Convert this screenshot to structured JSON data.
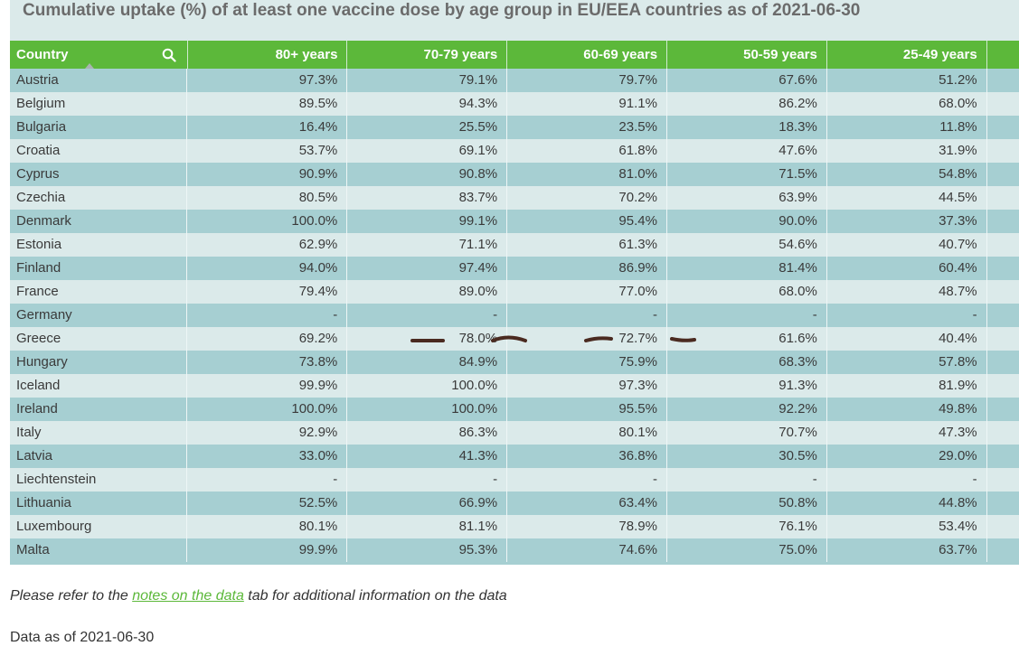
{
  "title": "Cumulative uptake (%) of at least one vaccine dose by age group in EU/EEA countries as of 2021-06-30",
  "table": {
    "headers": {
      "country": "Country",
      "age80": "80+ years",
      "age70": "70-79 years",
      "age60": "60-69 years",
      "age50": "50-59 years",
      "age25": "25-49 years"
    },
    "search_icon": "search-icon",
    "sorted_column": "Country",
    "rows": [
      {
        "country": "Austria",
        "age80": "97.3%",
        "age70": "79.1%",
        "age60": "79.7%",
        "age50": "67.6%",
        "age25": "51.2%"
      },
      {
        "country": "Belgium",
        "age80": "89.5%",
        "age70": "94.3%",
        "age60": "91.1%",
        "age50": "86.2%",
        "age25": "68.0%"
      },
      {
        "country": "Bulgaria",
        "age80": "16.4%",
        "age70": "25.5%",
        "age60": "23.5%",
        "age50": "18.3%",
        "age25": "11.8%"
      },
      {
        "country": "Croatia",
        "age80": "53.7%",
        "age70": "69.1%",
        "age60": "61.8%",
        "age50": "47.6%",
        "age25": "31.9%"
      },
      {
        "country": "Cyprus",
        "age80": "90.9%",
        "age70": "90.8%",
        "age60": "81.0%",
        "age50": "71.5%",
        "age25": "54.8%"
      },
      {
        "country": "Czechia",
        "age80": "80.5%",
        "age70": "83.7%",
        "age60": "70.2%",
        "age50": "63.9%",
        "age25": "44.5%"
      },
      {
        "country": "Denmark",
        "age80": "100.0%",
        "age70": "99.1%",
        "age60": "95.4%",
        "age50": "90.0%",
        "age25": "37.3%"
      },
      {
        "country": "Estonia",
        "age80": "62.9%",
        "age70": "71.1%",
        "age60": "61.3%",
        "age50": "54.6%",
        "age25": "40.7%"
      },
      {
        "country": "Finland",
        "age80": "94.0%",
        "age70": "97.4%",
        "age60": "86.9%",
        "age50": "81.4%",
        "age25": "60.4%"
      },
      {
        "country": "France",
        "age80": "79.4%",
        "age70": "89.0%",
        "age60": "77.0%",
        "age50": "68.0%",
        "age25": "48.7%"
      },
      {
        "country": "Germany",
        "age80": "-",
        "age70": "-",
        "age60": "-",
        "age50": "-",
        "age25": "-"
      },
      {
        "country": "Greece",
        "age80": "69.2%",
        "age70": "78.0%",
        "age60": "72.7%",
        "age50": "61.6%",
        "age25": "40.4%"
      },
      {
        "country": "Hungary",
        "age80": "73.8%",
        "age70": "84.9%",
        "age60": "75.9%",
        "age50": "68.3%",
        "age25": "57.8%"
      },
      {
        "country": "Iceland",
        "age80": "99.9%",
        "age70": "100.0%",
        "age60": "97.3%",
        "age50": "91.3%",
        "age25": "81.9%"
      },
      {
        "country": "Ireland",
        "age80": "100.0%",
        "age70": "100.0%",
        "age60": "95.5%",
        "age50": "92.2%",
        "age25": "49.8%"
      },
      {
        "country": "Italy",
        "age80": "92.9%",
        "age70": "86.3%",
        "age60": "80.1%",
        "age50": "70.7%",
        "age25": "47.3%"
      },
      {
        "country": "Latvia",
        "age80": "33.0%",
        "age70": "41.3%",
        "age60": "36.8%",
        "age50": "30.5%",
        "age25": "29.0%"
      },
      {
        "country": "Liechtenstein",
        "age80": "-",
        "age70": "-",
        "age60": "-",
        "age50": "-",
        "age25": "-"
      },
      {
        "country": "Lithuania",
        "age80": "52.5%",
        "age70": "66.9%",
        "age60": "63.4%",
        "age50": "50.8%",
        "age25": "44.8%"
      },
      {
        "country": "Luxembourg",
        "age80": "80.1%",
        "age70": "81.1%",
        "age60": "78.9%",
        "age50": "76.1%",
        "age25": "53.4%"
      },
      {
        "country": "Malta",
        "age80": "99.9%",
        "age70": "95.3%",
        "age60": "74.6%",
        "age50": "75.0%",
        "age25": "63.7%"
      }
    ]
  },
  "note": {
    "before": "Please refer to the ",
    "link": "notes on the data",
    "after": " tab for additional information on the data"
  },
  "as_of": "Data as of 2021-06-30",
  "colors": {
    "header_green": "#5cb83a",
    "row_teal": "#a6cfd2",
    "row_light": "#dbeaea",
    "link_green": "#5cb83a",
    "pen_marks": "#4a2a20"
  }
}
